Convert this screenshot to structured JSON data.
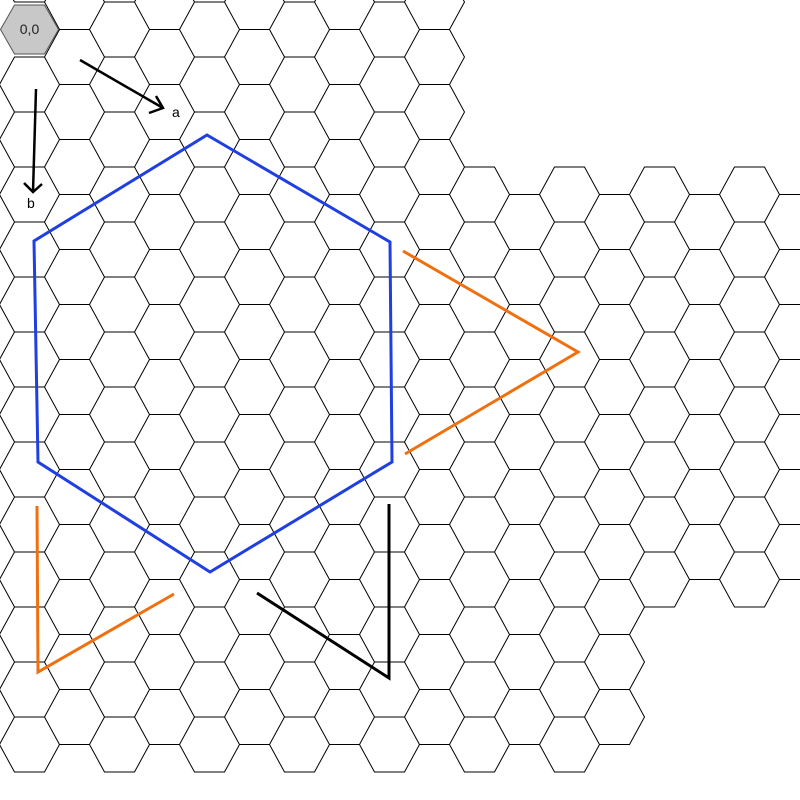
{
  "origin_label": "0,0",
  "axis_labels": {
    "a": "a",
    "b": "b"
  },
  "colors": {
    "grid": "#000000",
    "origin_fill": "#c8c8c8",
    "hexagon_outline": "#1f3fe0",
    "triangles": "#f07010",
    "angle_marker": "#000000",
    "background": "#ffffff"
  }
}
